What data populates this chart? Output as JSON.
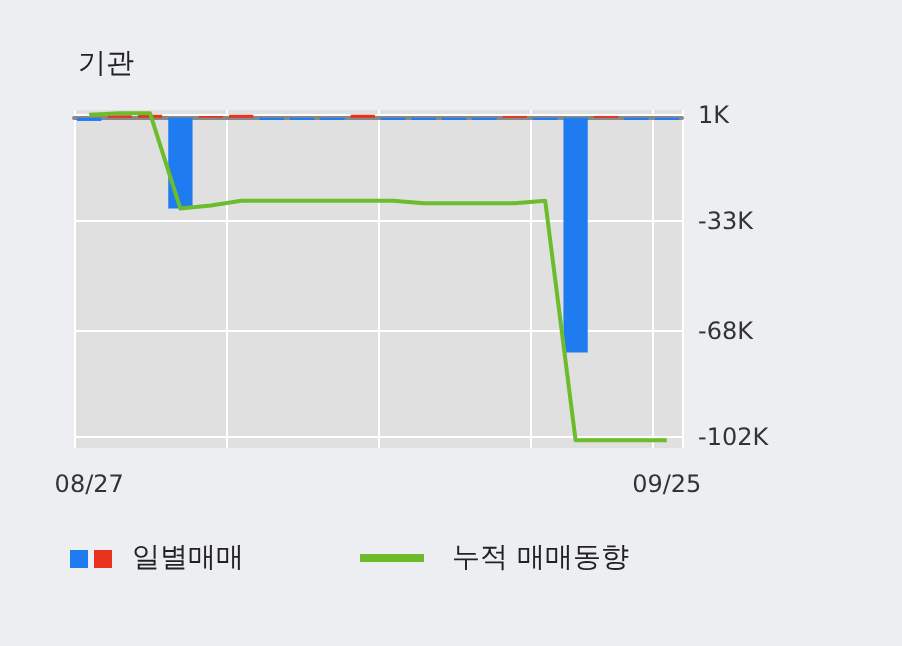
{
  "chart_data": {
    "type": "bar",
    "title": "기관",
    "categories": [
      "08/27",
      null,
      null,
      null,
      null,
      null,
      null,
      null,
      null,
      null,
      null,
      null,
      null,
      null,
      null,
      null,
      null,
      null,
      null,
      "09/25"
    ],
    "series": [
      {
        "name": "일별매매",
        "colors": [
          "#1e7cf0",
          "#e8321e",
          "#e8321e",
          "#1e7cf0",
          "#e8321e",
          "#e8321e",
          "#1e7cf0",
          "#1e7cf0",
          "#1e7cf0",
          "#e8321e",
          "#1e7cf0",
          "#1e7cf0",
          "#1e7cf0",
          "#1e7cf0",
          "#e8321e",
          "#1e7cf0",
          "#1e7cf0",
          "#e8321e",
          "#1e7cf0",
          "#1e7cf0"
        ],
        "values": [
          -1000,
          800,
          1000,
          -29000,
          600,
          1000,
          -700,
          -700,
          -700,
          1000,
          -700,
          -700,
          -700,
          -700,
          600,
          -700,
          -75000,
          600,
          -700,
          -700
        ]
      },
      {
        "name": "누적 매매동향",
        "type": "line",
        "color": "#6cbc2c",
        "values": [
          1000,
          1500,
          1500,
          -29000,
          -28000,
          -26500,
          -26500,
          -26500,
          -26500,
          -26500,
          -26500,
          -27300,
          -27300,
          -27300,
          -27300,
          -26500,
          -103000,
          -103000,
          -103000,
          -103000
        ]
      }
    ],
    "ylim": [
      -105500,
      2500
    ],
    "yticks": [
      {
        "value": 1000,
        "label": "1K"
      },
      {
        "value": -33000,
        "label": "-33K"
      },
      {
        "value": -68000,
        "label": "-68K"
      },
      {
        "value": -102000,
        "label": "-102K"
      }
    ],
    "grid": true,
    "legend": "bottom"
  }
}
